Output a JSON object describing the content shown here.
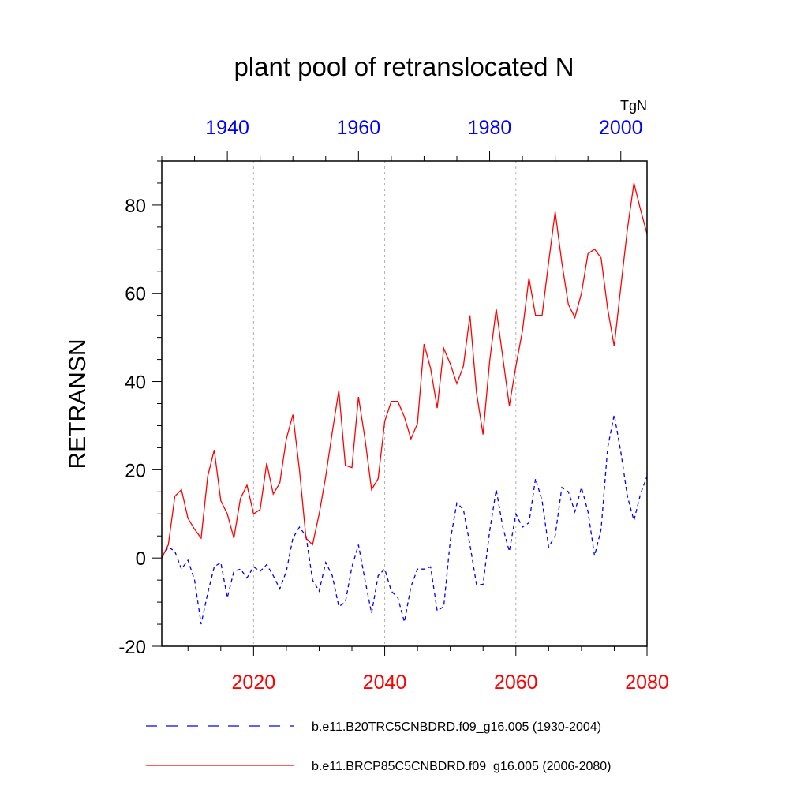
{
  "chart_data": {
    "type": "line",
    "title": "plant pool of retranslocated N",
    "units_label": "TgN",
    "ylabel": "RETRANSN",
    "xlabel": "",
    "ylim": [
      -20,
      90
    ],
    "y_ticks": [
      -20,
      0,
      20,
      40,
      60,
      80
    ],
    "grid": "vertical dotted lines at 2020, 2040, 2060",
    "legend_placement": "bottom",
    "colors": {
      "top_axis": "#0000ff",
      "bottom_axis": "#ff0000",
      "series_blue": "#0000ff",
      "series_red": "#ff0000"
    },
    "top_axis": {
      "range": [
        1930,
        2004
      ],
      "ticks": [
        1940,
        1960,
        1980,
        2000
      ]
    },
    "bottom_axis": {
      "range": [
        2006,
        2080
      ],
      "ticks": [
        2020,
        2040,
        2060,
        2080
      ]
    },
    "series": [
      {
        "name": "b.e11.B20TRC5CNBDRD.f09_g16.005 (1930-2004)",
        "color": "#0000ff",
        "dash": "dashed",
        "x_start": 1930,
        "values": [
          0,
          2.5,
          1.5,
          -2.5,
          -0.5,
          -5,
          -15,
          -8,
          -2,
          -1,
          -9,
          -3,
          -2.5,
          -4.5,
          -2,
          -3,
          -1.5,
          -4,
          -7,
          -3,
          4.5,
          7,
          5,
          -5,
          -7.5,
          -1,
          -4,
          -11,
          -10,
          -2,
          3,
          -5,
          -12.5,
          -4,
          -2.5,
          -7.5,
          -9,
          -14.5,
          -6.5,
          -2.5,
          -2.5,
          -2,
          -12,
          -11,
          4,
          12.5,
          11,
          3,
          -6,
          -6,
          6,
          15.5,
          7,
          1.5,
          10,
          7,
          8,
          18,
          13,
          2.5,
          5,
          16,
          15,
          10.5,
          16,
          10.5,
          0.5,
          6.5,
          25,
          32.5,
          24,
          14,
          8.5,
          14.5,
          18.5
        ]
      },
      {
        "name": "b.e11.BRCP85C5CNBDRD.f09_g16.005 (2006-2080)",
        "color": "#ff0000",
        "dash": "solid",
        "x_start": 2006,
        "values": [
          0,
          3,
          14,
          15.5,
          9,
          6.5,
          4.5,
          18.5,
          24.5,
          13,
          10,
          4.5,
          13.5,
          16.5,
          10,
          11,
          21.5,
          14.5,
          17,
          27,
          32.5,
          20,
          4.5,
          3,
          10,
          18.5,
          28.5,
          38,
          21,
          20.5,
          36.5,
          27,
          15.5,
          18,
          31,
          35.5,
          35.5,
          32,
          27,
          30.5,
          48.5,
          43,
          34,
          47.5,
          44,
          39.5,
          43.5,
          55,
          37.5,
          28,
          44.5,
          56.5,
          45.5,
          34.5,
          43.5,
          51.5,
          63.5,
          55,
          55,
          67,
          78.5,
          67,
          57.5,
          54.5,
          60,
          69,
          70,
          68,
          56.5,
          48,
          61.5,
          74.5,
          85,
          79,
          73.5
        ]
      }
    ]
  }
}
